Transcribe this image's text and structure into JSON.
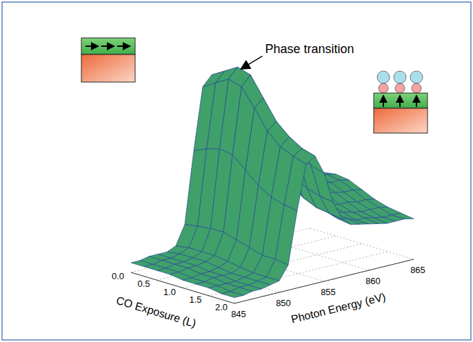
{
  "chart_data": {
    "type": "surface3d",
    "annotation": "Phase transition",
    "x_label": "CO Exposure (L)",
    "y_label": "Photon Energy (eV)",
    "color": "#3fa06a",
    "xlim": [
      0,
      2
    ],
    "xticks": [
      {
        "value": 0,
        "label": "0.0"
      },
      0.5,
      {
        "value": 1,
        "label": "1.0"
      },
      1.5,
      {
        "value": 2,
        "label": "2.0"
      }
    ],
    "ylim": [
      845,
      865
    ],
    "yticks": [
      845,
      850,
      855,
      860,
      865
    ],
    "zlim": [
      0,
      1
    ],
    "x": [
      0,
      0.25,
      0.5,
      0.75,
      1.0,
      1.25,
      1.5,
      1.75,
      2.0
    ],
    "y": [
      845,
      846,
      847,
      848,
      849,
      850,
      851,
      852,
      853,
      854,
      855,
      856,
      857,
      858,
      859,
      860,
      861,
      862,
      863,
      864,
      865
    ],
    "values": [
      [
        0.05,
        0.05,
        0.06,
        0.06,
        0.06,
        0.08,
        0.18,
        0.55,
        0.87,
        0.92,
        0.78,
        0.55,
        0.41,
        0.37,
        0.35,
        0.33,
        0.32,
        0.31,
        0.3,
        0.3,
        0.29
      ],
      [
        0.05,
        0.05,
        0.06,
        0.06,
        0.07,
        0.09,
        0.19,
        0.58,
        0.91,
        0.96,
        0.82,
        0.58,
        0.43,
        0.38,
        0.36,
        0.35,
        0.34,
        0.33,
        0.32,
        0.32,
        0.31
      ],
      [
        0.05,
        0.05,
        0.06,
        0.06,
        0.07,
        0.09,
        0.2,
        0.6,
        0.95,
        1.0,
        0.85,
        0.6,
        0.45,
        0.4,
        0.38,
        0.36,
        0.35,
        0.34,
        0.33,
        0.33,
        0.32
      ],
      [
        0.05,
        0.05,
        0.06,
        0.06,
        0.07,
        0.09,
        0.2,
        0.59,
        0.93,
        0.98,
        0.83,
        0.59,
        0.44,
        0.39,
        0.37,
        0.35,
        0.34,
        0.33,
        0.32,
        0.32,
        0.31
      ],
      [
        0.04,
        0.04,
        0.05,
        0.05,
        0.06,
        0.08,
        0.18,
        0.53,
        0.84,
        0.88,
        0.75,
        0.53,
        0.4,
        0.35,
        0.33,
        0.32,
        0.31,
        0.3,
        0.29,
        0.29,
        0.28
      ],
      [
        0.04,
        0.04,
        0.05,
        0.05,
        0.05,
        0.07,
        0.16,
        0.47,
        0.74,
        0.78,
        0.66,
        0.47,
        0.35,
        0.31,
        0.3,
        0.28,
        0.27,
        0.27,
        0.26,
        0.26,
        0.25
      ],
      [
        0.04,
        0.04,
        0.04,
        0.04,
        0.05,
        0.06,
        0.14,
        0.43,
        0.68,
        0.72,
        0.61,
        0.43,
        0.32,
        0.29,
        0.27,
        0.26,
        0.25,
        0.24,
        0.24,
        0.24,
        0.23
      ],
      [
        0.03,
        0.03,
        0.04,
        0.04,
        0.05,
        0.06,
        0.14,
        0.41,
        0.65,
        0.68,
        0.58,
        0.41,
        0.31,
        0.27,
        0.26,
        0.24,
        0.24,
        0.23,
        0.22,
        0.22,
        0.22
      ],
      [
        0.03,
        0.03,
        0.04,
        0.04,
        0.05,
        0.06,
        0.13,
        0.4,
        0.63,
        0.66,
        0.56,
        0.4,
        0.3,
        0.26,
        0.25,
        0.24,
        0.23,
        0.22,
        0.22,
        0.22,
        0.21
      ]
    ]
  }
}
